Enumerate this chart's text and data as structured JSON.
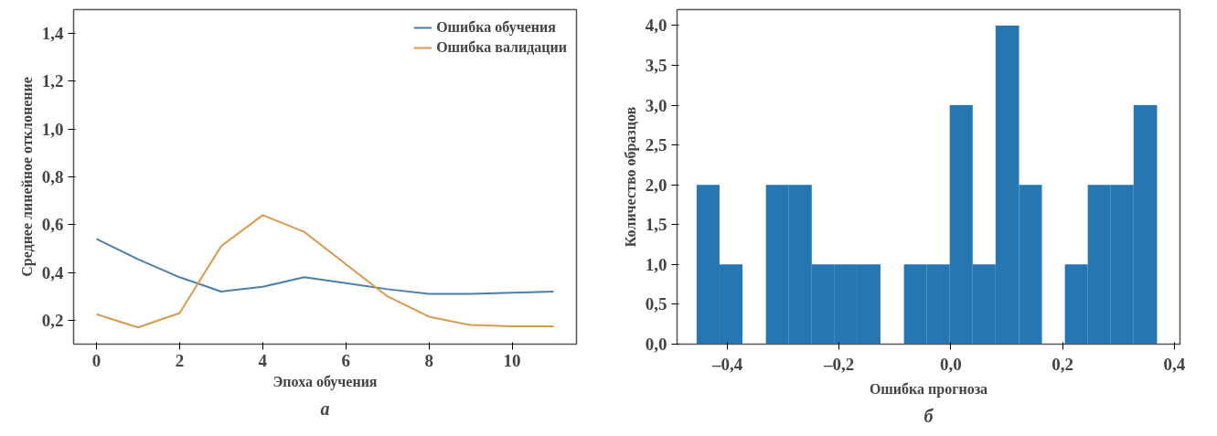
{
  "chart_data": [
    {
      "type": "line",
      "xlabel": "Эпоха обучения",
      "ylabel": "Среднее линейное отклонение",
      "annotations": [
        "а"
      ],
      "x": [
        0,
        1,
        2,
        3,
        4,
        5,
        6,
        7,
        8,
        9,
        10,
        11
      ],
      "series": [
        {
          "name": "Ошибка обучения",
          "color": "#4a80a8",
          "values": [
            0.54,
            0.455,
            0.38,
            0.32,
            0.34,
            0.38,
            0.355,
            0.33,
            0.31,
            0.31,
            0.315,
            0.32
          ]
        },
        {
          "name": "Ошибка валидации",
          "color": "#d9994e",
          "values": [
            0.225,
            0.17,
            0.23,
            0.51,
            0.64,
            0.57,
            0.435,
            0.3,
            0.215,
            0.18,
            0.175,
            0.175
          ]
        }
      ],
      "xlim": [
        -0.55,
        11.55
      ],
      "ylim": [
        0.1,
        1.5
      ],
      "xticks": [
        0,
        2,
        4,
        6,
        8,
        10
      ],
      "yticks": [
        {
          "value": 0.2,
          "label": "0,2"
        },
        {
          "value": 0.4,
          "label": "0,4"
        },
        {
          "value": 0.6,
          "label": "0,6"
        },
        {
          "value": 0.8,
          "label": "0,8"
        },
        {
          "value": 1.0,
          "label": "1,0"
        },
        {
          "value": 1.2,
          "label": "1,2"
        },
        {
          "value": 1.4,
          "label": "1,4"
        }
      ],
      "grid": false,
      "legend": "top right"
    },
    {
      "type": "histogram",
      "xlabel": "Ошибка прогноза",
      "ylabel": "Количество образцов",
      "annotations": [
        "б"
      ],
      "color": "#2676b2",
      "bins": [
        -0.455,
        -0.414,
        -0.373,
        -0.331,
        -0.29,
        -0.249,
        -0.208,
        -0.167,
        -0.126,
        -0.084,
        -0.043,
        -0.002,
        0.039,
        0.08,
        0.122,
        0.163,
        0.204,
        0.245,
        0.286,
        0.327,
        0.369
      ],
      "values": [
        2,
        1,
        0,
        2,
        2,
        1,
        1,
        1,
        0,
        1,
        1,
        3,
        1,
        4,
        2,
        0,
        1,
        2,
        2,
        3
      ],
      "xlim": [
        -0.49,
        0.41
      ],
      "ylim": [
        0,
        4.2
      ],
      "xticks": [
        {
          "value": -0.4,
          "label": "–0,4"
        },
        {
          "value": -0.2,
          "label": "–0,2"
        },
        {
          "value": 0.0,
          "label": "0,0"
        },
        {
          "value": 0.2,
          "label": "0,2"
        },
        {
          "value": 0.4,
          "label": "0,4"
        }
      ],
      "yticks": [
        {
          "value": 0,
          "label": "0,0"
        },
        {
          "value": 0.5,
          "label": "0,5"
        },
        {
          "value": 1.0,
          "label": "1,0"
        },
        {
          "value": 1.5,
          "label": "1,5"
        },
        {
          "value": 2.0,
          "label": "2,0"
        },
        {
          "value": 2.5,
          "label": "2,5"
        },
        {
          "value": 3.0,
          "label": "3,0"
        },
        {
          "value": 3.5,
          "label": "3,5"
        },
        {
          "value": 4.0,
          "label": "4,0"
        }
      ],
      "grid": false
    }
  ]
}
